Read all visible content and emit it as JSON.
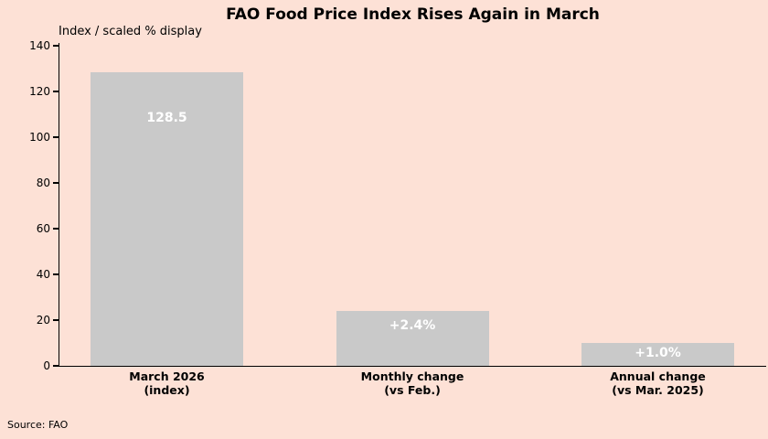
{
  "chart_data": {
    "type": "bar",
    "title": "FAO Food Price Index Rises Again in March",
    "subtitle": "Index / scaled % display",
    "source": "Source: FAO",
    "categories": [
      {
        "lines": [
          "March 2026",
          "(index)"
        ]
      },
      {
        "lines": [
          "Monthly change",
          "(vs Feb.)"
        ]
      },
      {
        "lines": [
          "Annual change",
          "(vs Mar. 2025)"
        ]
      }
    ],
    "values": [
      128.5,
      24,
      10
    ],
    "bar_labels": [
      "128.5",
      "+2.4%",
      "+1.0%"
    ],
    "ylim": [
      0,
      140
    ],
    "yticks": [
      0,
      20,
      40,
      60,
      80,
      100,
      120,
      140
    ],
    "grid": false,
    "legend_position": "none",
    "colors": {
      "background": "#fde1d6",
      "bar": "#c9c9c9",
      "bar_label": "#ffffff",
      "axis": "#000000",
      "text": "#000000"
    }
  }
}
